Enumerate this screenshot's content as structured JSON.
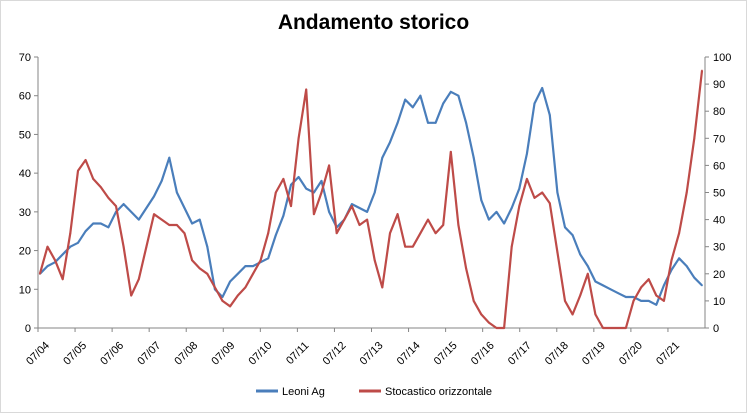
{
  "chart_data": {
    "type": "line",
    "title": "Andamento storico",
    "xlabel": "",
    "ylabel": "",
    "y2label": "",
    "x_ticks": [
      "07/04",
      "07/05",
      "07/06",
      "07/07",
      "07/08",
      "07/09",
      "07/10",
      "07/11",
      "07/12",
      "07/13",
      "07/14",
      "07/15",
      "07/16",
      "07/17",
      "07/18",
      "07/19",
      "07/20",
      "07/21"
    ],
    "ylim": [
      0,
      70
    ],
    "y_ticks": [
      0,
      10,
      20,
      30,
      40,
      50,
      60,
      70
    ],
    "y2lim": [
      0,
      100
    ],
    "y2_ticks": [
      0,
      10,
      20,
      30,
      40,
      50,
      60,
      70,
      80,
      90,
      100
    ],
    "grid": false,
    "legend_position": "bottom",
    "series": [
      {
        "name": "Leoni Ag",
        "axis": "left",
        "color": "#4a7ebb",
        "x": [
          2004.5,
          2004.7,
          2004.9,
          2005.1,
          2005.3,
          2005.5,
          2005.7,
          2005.9,
          2006.1,
          2006.3,
          2006.5,
          2006.7,
          2006.9,
          2007.1,
          2007.3,
          2007.5,
          2007.7,
          2007.9,
          2008.1,
          2008.3,
          2008.5,
          2008.7,
          2008.9,
          2009.1,
          2009.3,
          2009.5,
          2009.7,
          2009.9,
          2010.1,
          2010.3,
          2010.5,
          2010.7,
          2010.9,
          2011.1,
          2011.3,
          2011.5,
          2011.7,
          2011.9,
          2012.1,
          2012.3,
          2012.5,
          2012.7,
          2012.9,
          2013.1,
          2013.3,
          2013.5,
          2013.7,
          2013.9,
          2014.1,
          2014.3,
          2014.5,
          2014.7,
          2014.9,
          2015.1,
          2015.3,
          2015.5,
          2015.7,
          2015.9,
          2016.1,
          2016.3,
          2016.5,
          2016.7,
          2016.9,
          2017.1,
          2017.3,
          2017.5,
          2017.7,
          2017.9,
          2018.1,
          2018.3,
          2018.5,
          2018.7,
          2018.9,
          2019.1,
          2019.3,
          2019.5,
          2019.7,
          2019.9,
          2020.1,
          2020.3,
          2020.5,
          2020.7,
          2020.9,
          2021.1,
          2021.3,
          2021.5,
          2021.7,
          2021.9
        ],
        "values": [
          14,
          16,
          17,
          19,
          21,
          22,
          25,
          27,
          27,
          26,
          30,
          32,
          30,
          28,
          31,
          34,
          38,
          44,
          35,
          31,
          27,
          28,
          21,
          10,
          8,
          12,
          14,
          16,
          16,
          17,
          18,
          24,
          29,
          37,
          39,
          36,
          35,
          38,
          30,
          26,
          28,
          32,
          31,
          30,
          35,
          44,
          48,
          53,
          59,
          57,
          60,
          53,
          53,
          58,
          61,
          60,
          53,
          44,
          33,
          28,
          30,
          27,
          31,
          36,
          45,
          58,
          62,
          55,
          35,
          26,
          24,
          19,
          16,
          12,
          11,
          10,
          9,
          8,
          8,
          7,
          7,
          6,
          11,
          15,
          18,
          16,
          13,
          11
        ]
      },
      {
        "name": "Stocastico orizzontale",
        "axis": "right",
        "color": "#be4b48",
        "x": [
          2004.5,
          2004.7,
          2004.9,
          2005.1,
          2005.3,
          2005.5,
          2005.7,
          2005.9,
          2006.1,
          2006.3,
          2006.5,
          2006.7,
          2006.9,
          2007.1,
          2007.3,
          2007.5,
          2007.7,
          2007.9,
          2008.1,
          2008.3,
          2008.5,
          2008.7,
          2008.9,
          2009.1,
          2009.3,
          2009.5,
          2009.7,
          2009.9,
          2010.1,
          2010.3,
          2010.5,
          2010.7,
          2010.9,
          2011.1,
          2011.3,
          2011.5,
          2011.7,
          2011.9,
          2012.1,
          2012.3,
          2012.5,
          2012.7,
          2012.9,
          2013.1,
          2013.3,
          2013.5,
          2013.7,
          2013.9,
          2014.1,
          2014.3,
          2014.5,
          2014.7,
          2014.9,
          2015.1,
          2015.3,
          2015.5,
          2015.7,
          2015.9,
          2016.1,
          2016.3,
          2016.5,
          2016.7,
          2016.9,
          2017.1,
          2017.3,
          2017.5,
          2017.7,
          2017.9,
          2018.1,
          2018.3,
          2018.5,
          2018.7,
          2018.9,
          2019.1,
          2019.3,
          2019.5,
          2019.7,
          2019.9,
          2020.1,
          2020.3,
          2020.5,
          2020.7,
          2020.9,
          2021.1,
          2021.3,
          2021.5,
          2021.7,
          2021.9
        ],
        "values": [
          20,
          30,
          25,
          18,
          35,
          58,
          62,
          55,
          52,
          48,
          45,
          30,
          12,
          18,
          30,
          42,
          40,
          38,
          38,
          35,
          25,
          22,
          20,
          15,
          10,
          8,
          12,
          15,
          20,
          25,
          35,
          50,
          55,
          45,
          70,
          88,
          42,
          50,
          60,
          35,
          40,
          45,
          38,
          40,
          25,
          15,
          35,
          42,
          30,
          30,
          35,
          40,
          35,
          38,
          65,
          38,
          22,
          10,
          5,
          2,
          0,
          0,
          30,
          45,
          55,
          48,
          50,
          46,
          28,
          10,
          5,
          12,
          20,
          5,
          0,
          0,
          0,
          0,
          10,
          15,
          18,
          12,
          10,
          25,
          35,
          50,
          70,
          95
        ]
      }
    ]
  }
}
